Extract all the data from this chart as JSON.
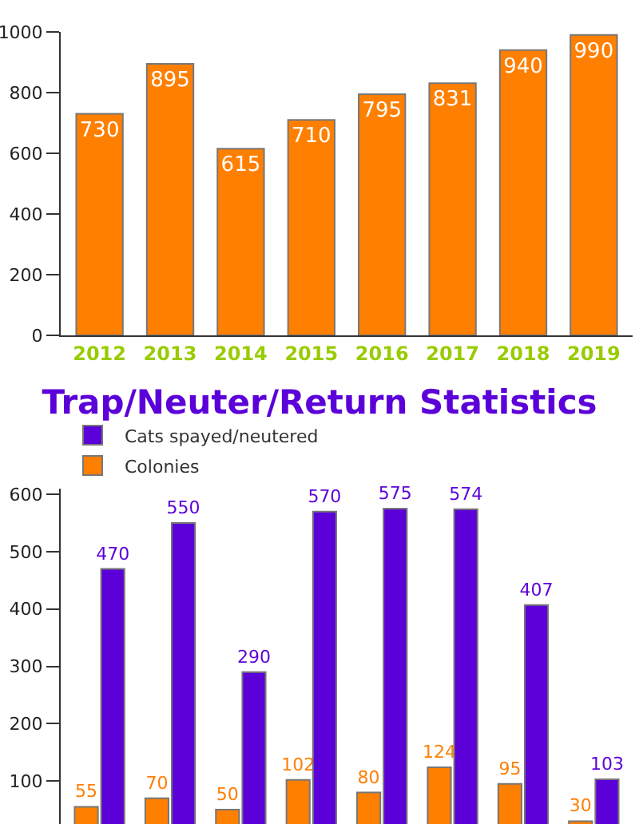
{
  "chart_data": [
    {
      "type": "bar",
      "categories": [
        "2012",
        "2013",
        "2014",
        "2015",
        "2016",
        "2017",
        "2018",
        "2019"
      ],
      "values": [
        730,
        895,
        615,
        710,
        795,
        831,
        940,
        990
      ],
      "color": "#ff7f00",
      "data_labels": true,
      "ylim": [
        0,
        1000
      ],
      "yticks": [
        0,
        200,
        400,
        600,
        800,
        1000
      ]
    },
    {
      "type": "bar",
      "title": "Trap/Neuter/Return Statistics",
      "categories": [
        null,
        null,
        null,
        null,
        null,
        null,
        null,
        null
      ],
      "series": [
        {
          "name": "Colonies",
          "color": "#ff7f00",
          "values": [
            55,
            70,
            50,
            102,
            80,
            124,
            95,
            30
          ]
        },
        {
          "name": "Cats spayed/neutered",
          "color": "#5b00d9",
          "values": [
            470,
            550,
            290,
            570,
            575,
            574,
            407,
            103
          ]
        }
      ],
      "data_labels": true,
      "legend": "top left",
      "tick_labels": "y",
      "ylim": [
        25,
        610
      ],
      "yticks": [
        100,
        200,
        300,
        400,
        500,
        600
      ]
    }
  ]
}
